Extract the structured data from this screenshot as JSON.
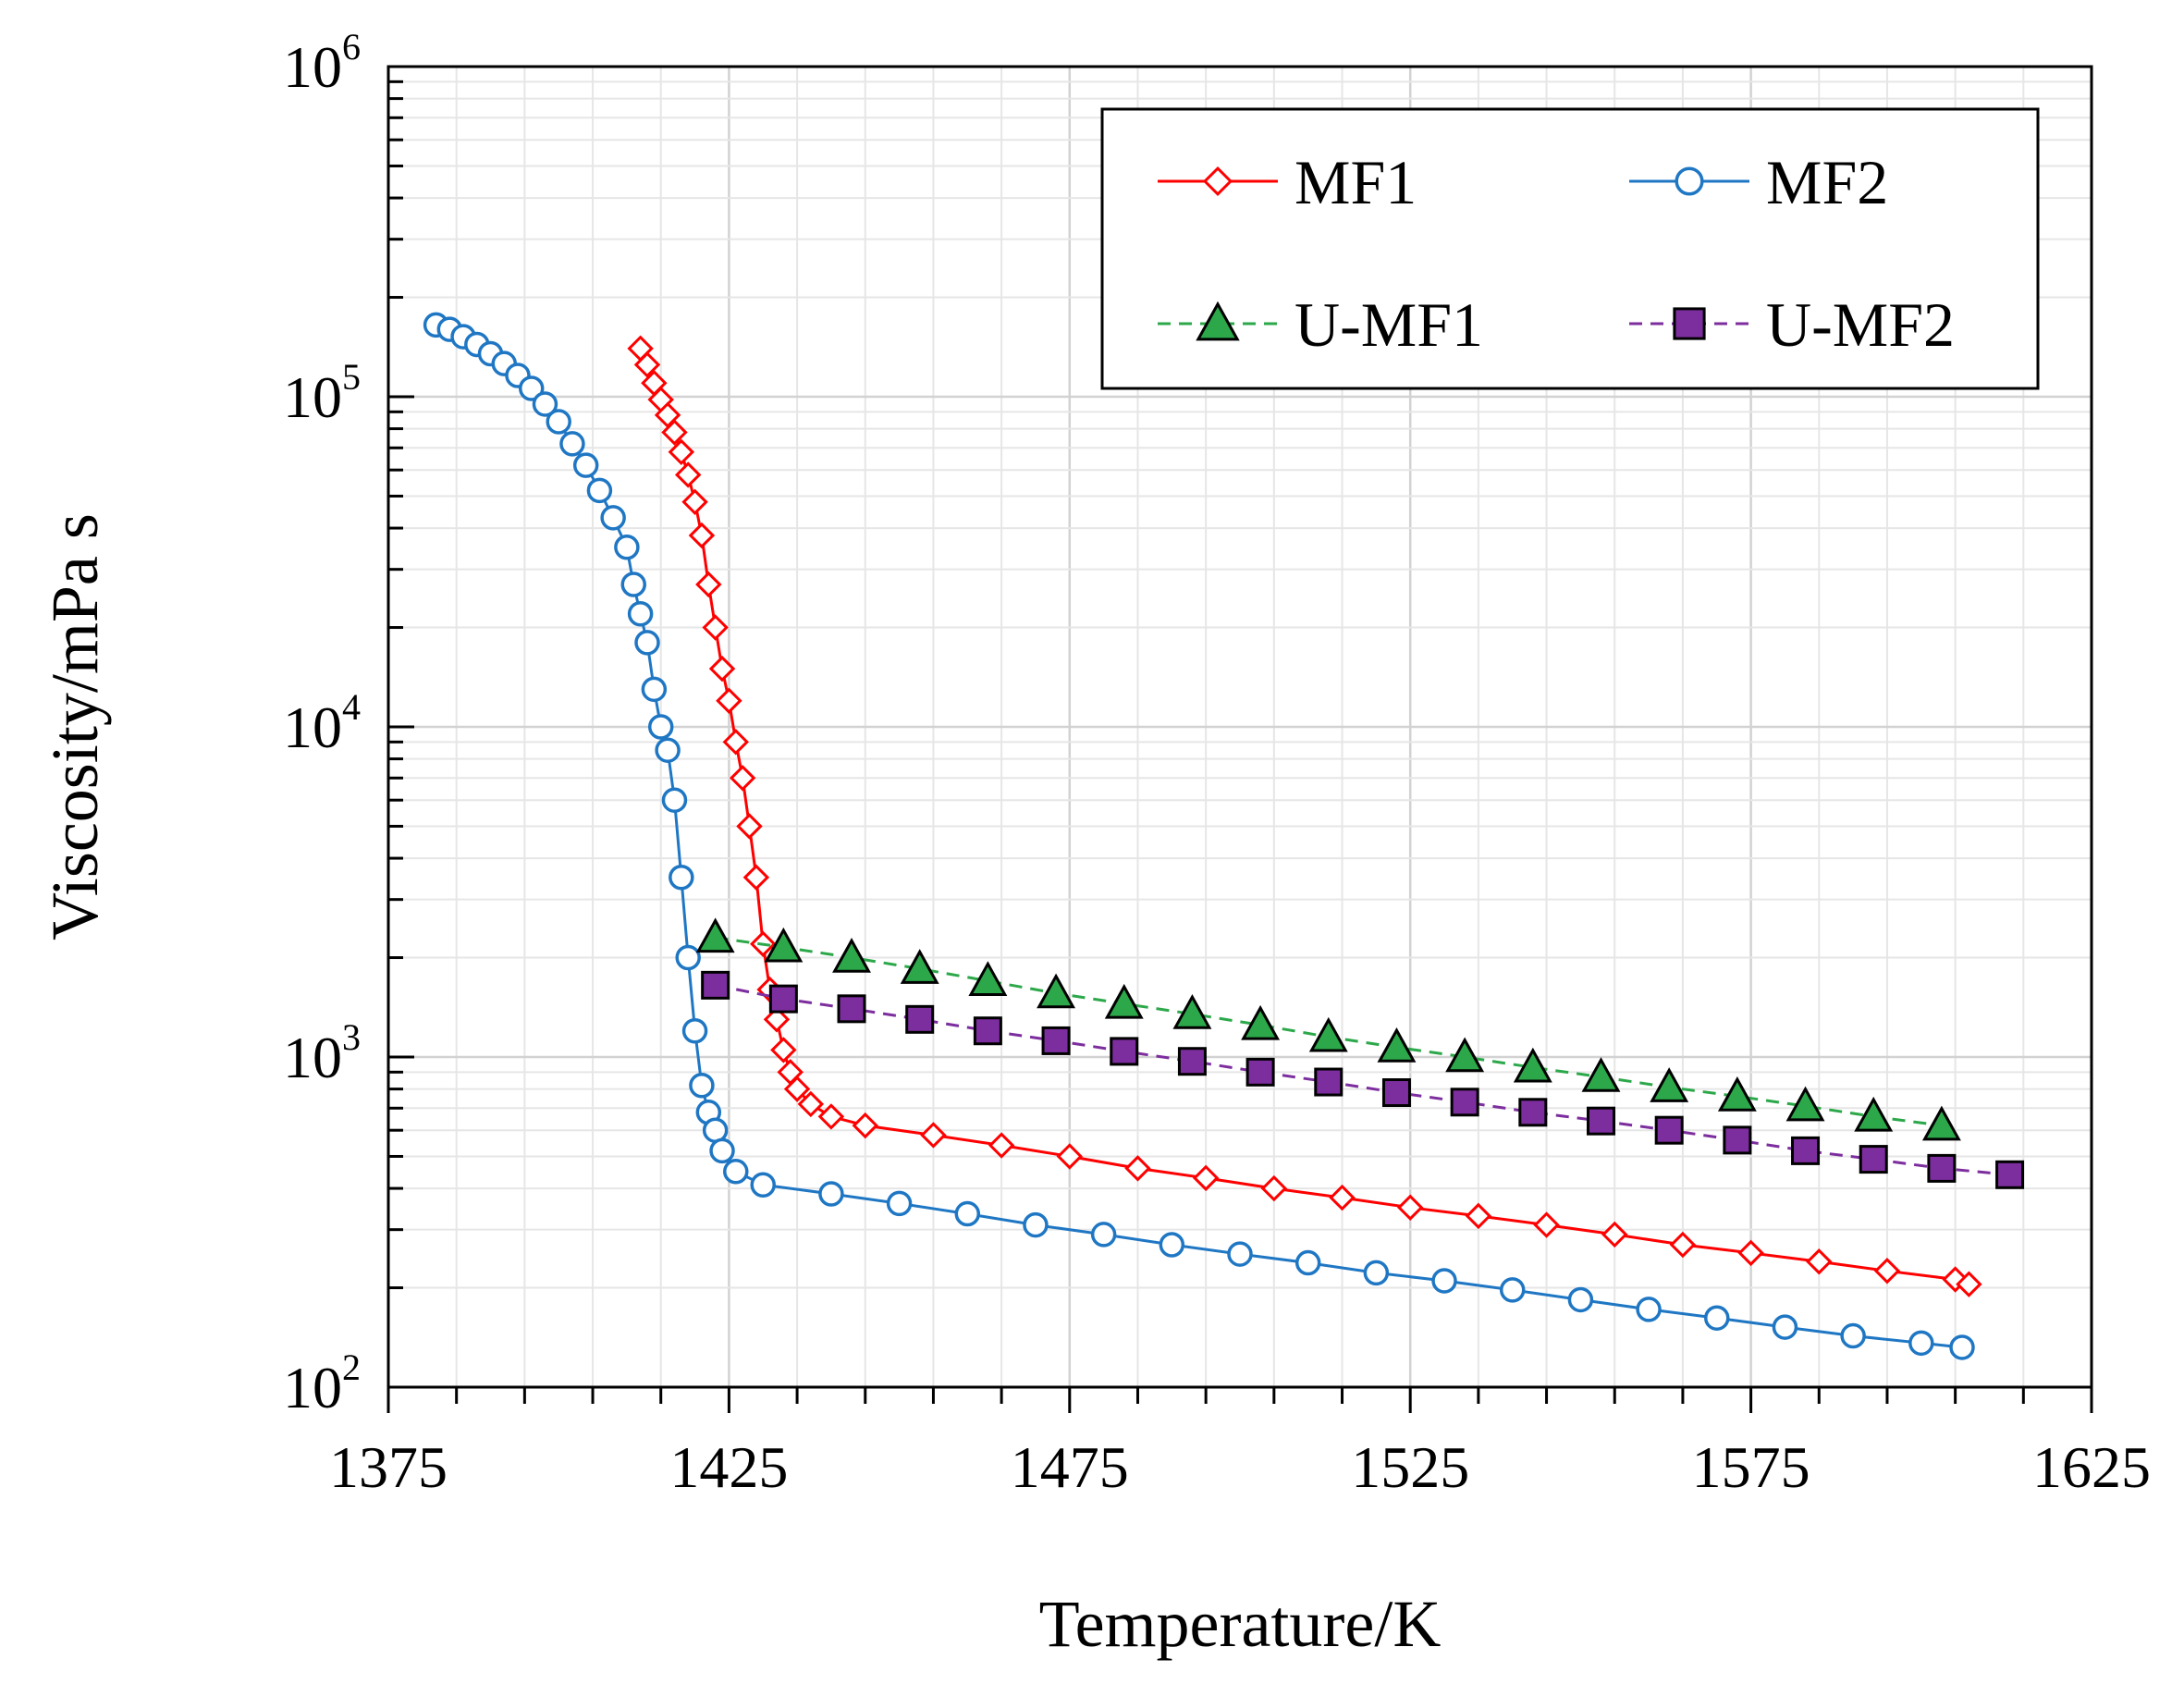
{
  "chart_data": {
    "type": "scatter",
    "title": "",
    "xlabel": "Temperature/K",
    "ylabel": "Viscosity/mPa s",
    "xlim": [
      1375,
      1625
    ],
    "ylim": [
      100,
      1000000
    ],
    "yscale": "log",
    "grid": true,
    "legend_position": "top-right",
    "x_ticks": [
      {
        "value": 1375,
        "label": "1375"
      },
      {
        "value": 1425,
        "label": "1425"
      },
      {
        "value": 1475,
        "label": "1475"
      },
      {
        "value": 1525,
        "label": "1525"
      },
      {
        "value": 1575,
        "label": "1575"
      },
      {
        "value": 1625,
        "label": "1625"
      }
    ],
    "y_ticks": [
      {
        "value": 100,
        "base": "10",
        "exp": "2"
      },
      {
        "value": 1000,
        "base": "10",
        "exp": "3"
      },
      {
        "value": 10000,
        "base": "10",
        "exp": "4"
      },
      {
        "value": 100000,
        "base": "10",
        "exp": "5"
      },
      {
        "value": 1000000,
        "base": "10",
        "exp": "6"
      }
    ],
    "series": [
      {
        "name": "MF1",
        "color": "#ff0000",
        "marker": "diamond-open",
        "line": "solid",
        "points": [
          [
            1412,
            140000
          ],
          [
            1413,
            125000
          ],
          [
            1414,
            110000
          ],
          [
            1415,
            98000
          ],
          [
            1416,
            88000
          ],
          [
            1417,
            78000
          ],
          [
            1418,
            68000
          ],
          [
            1419,
            58000
          ],
          [
            1420,
            48000
          ],
          [
            1421,
            38000
          ],
          [
            1422,
            27000
          ],
          [
            1423,
            20000
          ],
          [
            1424,
            15000
          ],
          [
            1425,
            12000
          ],
          [
            1426,
            9000
          ],
          [
            1427,
            7000
          ],
          [
            1428,
            5000
          ],
          [
            1429,
            3500
          ],
          [
            1430,
            2200
          ],
          [
            1431,
            1600
          ],
          [
            1432,
            1300
          ],
          [
            1433,
            1050
          ],
          [
            1434,
            900
          ],
          [
            1435,
            800
          ],
          [
            1437,
            720
          ],
          [
            1440,
            660
          ],
          [
            1445,
            620
          ],
          [
            1455,
            580
          ],
          [
            1465,
            540
          ],
          [
            1475,
            500
          ],
          [
            1485,
            460
          ],
          [
            1495,
            430
          ],
          [
            1505,
            400
          ],
          [
            1515,
            375
          ],
          [
            1525,
            350
          ],
          [
            1535,
            330
          ],
          [
            1545,
            310
          ],
          [
            1555,
            290
          ],
          [
            1565,
            270
          ],
          [
            1575,
            255
          ],
          [
            1585,
            240
          ],
          [
            1595,
            225
          ],
          [
            1605,
            212
          ],
          [
            1607,
            205
          ]
        ]
      },
      {
        "name": "MF2",
        "color": "#1f77c4",
        "marker": "circle-open",
        "line": "solid",
        "points": [
          [
            1382,
            165000
          ],
          [
            1384,
            160000
          ],
          [
            1386,
            152000
          ],
          [
            1388,
            144000
          ],
          [
            1390,
            135000
          ],
          [
            1392,
            126000
          ],
          [
            1394,
            116000
          ],
          [
            1396,
            106000
          ],
          [
            1398,
            95000
          ],
          [
            1400,
            84000
          ],
          [
            1402,
            72000
          ],
          [
            1404,
            62000
          ],
          [
            1406,
            52000
          ],
          [
            1408,
            43000
          ],
          [
            1410,
            35000
          ],
          [
            1411,
            27000
          ],
          [
            1412,
            22000
          ],
          [
            1413,
            18000
          ],
          [
            1414,
            13000
          ],
          [
            1415,
            10000
          ],
          [
            1416,
            8500
          ],
          [
            1417,
            6000
          ],
          [
            1418,
            3500
          ],
          [
            1419,
            2000
          ],
          [
            1420,
            1200
          ],
          [
            1421,
            820
          ],
          [
            1422,
            680
          ],
          [
            1423,
            600
          ],
          [
            1424,
            520
          ],
          [
            1426,
            450
          ],
          [
            1430,
            410
          ],
          [
            1440,
            385
          ],
          [
            1450,
            360
          ],
          [
            1460,
            335
          ],
          [
            1470,
            310
          ],
          [
            1480,
            290
          ],
          [
            1490,
            270
          ],
          [
            1500,
            253
          ],
          [
            1510,
            238
          ],
          [
            1520,
            222
          ],
          [
            1530,
            210
          ],
          [
            1540,
            197
          ],
          [
            1550,
            184
          ],
          [
            1560,
            172
          ],
          [
            1570,
            162
          ],
          [
            1580,
            152
          ],
          [
            1590,
            143
          ],
          [
            1600,
            136
          ],
          [
            1606,
            132
          ]
        ]
      },
      {
        "name": "U-MF1",
        "color": "#2ca84a",
        "marker": "triangle-filled",
        "line": "dashed",
        "points": [
          [
            1423,
            2300
          ],
          [
            1433,
            2150
          ],
          [
            1443,
            2000
          ],
          [
            1453,
            1850
          ],
          [
            1463,
            1700
          ],
          [
            1473,
            1560
          ],
          [
            1483,
            1450
          ],
          [
            1493,
            1350
          ],
          [
            1503,
            1250
          ],
          [
            1513,
            1150
          ],
          [
            1523,
            1070
          ],
          [
            1533,
            1000
          ],
          [
            1543,
            930
          ],
          [
            1553,
            870
          ],
          [
            1563,
            810
          ],
          [
            1573,
            760
          ],
          [
            1583,
            710
          ],
          [
            1593,
            660
          ],
          [
            1603,
            620
          ]
        ]
      },
      {
        "name": "U-MF2",
        "color": "#7d2e9e",
        "marker": "square-filled",
        "line": "dashed",
        "points": [
          [
            1423,
            1650
          ],
          [
            1433,
            1500
          ],
          [
            1443,
            1400
          ],
          [
            1453,
            1300
          ],
          [
            1463,
            1200
          ],
          [
            1473,
            1120
          ],
          [
            1483,
            1040
          ],
          [
            1493,
            970
          ],
          [
            1503,
            900
          ],
          [
            1513,
            840
          ],
          [
            1523,
            780
          ],
          [
            1533,
            730
          ],
          [
            1543,
            680
          ],
          [
            1553,
            640
          ],
          [
            1563,
            600
          ],
          [
            1573,
            560
          ],
          [
            1583,
            520
          ],
          [
            1593,
            490
          ],
          [
            1603,
            460
          ],
          [
            1613,
            440
          ]
        ]
      }
    ]
  }
}
